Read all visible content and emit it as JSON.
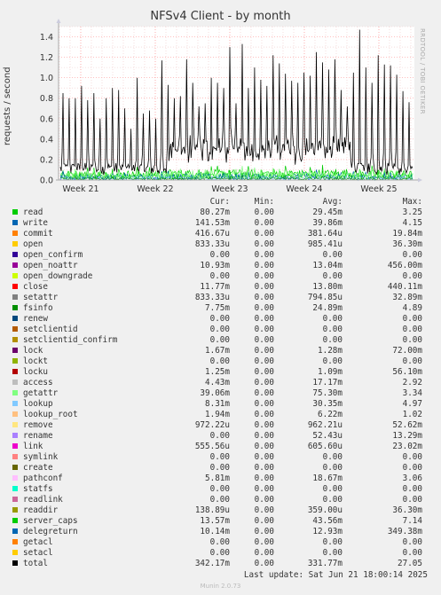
{
  "title": "NFSv4 Client - by month",
  "side_label": "RRDTOOL / TOBI OETIKER",
  "last_update": "Last update: Sat Jun 21 18:00:14 2025",
  "version": "Munin 2.0.73",
  "legend_headers": {
    "cur": "Cur:",
    "min": "Min:",
    "avg": "Avg:",
    "max": "Max:"
  },
  "chart_data": {
    "type": "line",
    "title": "NFSv4 Client - by month",
    "ylabel": "requests / second",
    "ylim": [
      0,
      1.5
    ],
    "yticks": [
      "0.0",
      "0.2",
      "0.4",
      "0.6",
      "0.8",
      "1.0",
      "1.2",
      "1.4"
    ],
    "xticks": [
      "Week 21",
      "Week 22",
      "Week 23",
      "Week 24",
      "Week 25"
    ],
    "grid": true,
    "series": [
      {
        "name": "read",
        "color": "#00cc00",
        "cur": "80.27m",
        "min": "0.00",
        "avg": "29.45m",
        "max": "3.25"
      },
      {
        "name": "write",
        "color": "#0066b3",
        "cur": "141.53m",
        "min": "0.00",
        "avg": "39.86m",
        "max": "4.15"
      },
      {
        "name": "commit",
        "color": "#ff8000",
        "cur": "416.67u",
        "min": "0.00",
        "avg": "381.64u",
        "max": "19.84m"
      },
      {
        "name": "open",
        "color": "#ffcc00",
        "cur": "833.33u",
        "min": "0.00",
        "avg": "985.41u",
        "max": "36.30m"
      },
      {
        "name": "open_confirm",
        "color": "#330099",
        "cur": "0.00",
        "min": "0.00",
        "avg": "0.00",
        "max": "0.00"
      },
      {
        "name": "open_noattr",
        "color": "#990099",
        "cur": "10.93m",
        "min": "0.00",
        "avg": "13.04m",
        "max": "456.00m"
      },
      {
        "name": "open_downgrade",
        "color": "#ccff00",
        "cur": "0.00",
        "min": "0.00",
        "avg": "0.00",
        "max": "0.00"
      },
      {
        "name": "close",
        "color": "#ff0000",
        "cur": "11.77m",
        "min": "0.00",
        "avg": "13.80m",
        "max": "440.11m"
      },
      {
        "name": "setattr",
        "color": "#808080",
        "cur": "833.33u",
        "min": "0.00",
        "avg": "794.85u",
        "max": "32.89m"
      },
      {
        "name": "fsinfo",
        "color": "#008f00",
        "cur": "7.75m",
        "min": "0.00",
        "avg": "24.89m",
        "max": "4.89"
      },
      {
        "name": "renew",
        "color": "#00487d",
        "cur": "0.00",
        "min": "0.00",
        "avg": "0.00",
        "max": "0.00"
      },
      {
        "name": "setclientid",
        "color": "#b35a00",
        "cur": "0.00",
        "min": "0.00",
        "avg": "0.00",
        "max": "0.00"
      },
      {
        "name": "setclientid_confirm",
        "color": "#b38f00",
        "cur": "0.00",
        "min": "0.00",
        "avg": "0.00",
        "max": "0.00"
      },
      {
        "name": "lock",
        "color": "#6b006b",
        "cur": "1.67m",
        "min": "0.00",
        "avg": "1.28m",
        "max": "72.00m"
      },
      {
        "name": "lockt",
        "color": "#8fb300",
        "cur": "0.00",
        "min": "0.00",
        "avg": "0.00",
        "max": "0.00"
      },
      {
        "name": "locku",
        "color": "#b30000",
        "cur": "1.25m",
        "min": "0.00",
        "avg": "1.09m",
        "max": "56.10m"
      },
      {
        "name": "access",
        "color": "#bebebe",
        "cur": "4.43m",
        "min": "0.00",
        "avg": "17.17m",
        "max": "2.92"
      },
      {
        "name": "getattr",
        "color": "#80ff80",
        "cur": "39.06m",
        "min": "0.00",
        "avg": "75.30m",
        "max": "3.34"
      },
      {
        "name": "lookup",
        "color": "#80c9ff",
        "cur": "8.31m",
        "min": "0.00",
        "avg": "30.35m",
        "max": "4.97"
      },
      {
        "name": "lookup_root",
        "color": "#ffc080",
        "cur": "1.94m",
        "min": "0.00",
        "avg": "6.22m",
        "max": "1.02"
      },
      {
        "name": "remove",
        "color": "#ffe680",
        "cur": "972.22u",
        "min": "0.00",
        "avg": "962.21u",
        "max": "52.62m"
      },
      {
        "name": "rename",
        "color": "#aa80ff",
        "cur": "0.00",
        "min": "0.00",
        "avg": "52.43u",
        "max": "13.29m"
      },
      {
        "name": "link",
        "color": "#ee00cc",
        "cur": "555.56u",
        "min": "0.00",
        "avg": "605.60u",
        "max": "23.02m"
      },
      {
        "name": "symlink",
        "color": "#ff8080",
        "cur": "0.00",
        "min": "0.00",
        "avg": "0.00",
        "max": "0.00"
      },
      {
        "name": "create",
        "color": "#666600",
        "cur": "0.00",
        "min": "0.00",
        "avg": "0.00",
        "max": "0.00"
      },
      {
        "name": "pathconf",
        "color": "#ffbfff",
        "cur": "5.81m",
        "min": "0.00",
        "avg": "18.67m",
        "max": "3.06"
      },
      {
        "name": "statfs",
        "color": "#00ffcc",
        "cur": "0.00",
        "min": "0.00",
        "avg": "0.00",
        "max": "0.00"
      },
      {
        "name": "readlink",
        "color": "#cc6699",
        "cur": "0.00",
        "min": "0.00",
        "avg": "0.00",
        "max": "0.00"
      },
      {
        "name": "readdir",
        "color": "#999900",
        "cur": "138.89u",
        "min": "0.00",
        "avg": "359.00u",
        "max": "36.30m"
      },
      {
        "name": "server_caps",
        "color": "#00cc00",
        "cur": "13.57m",
        "min": "0.00",
        "avg": "43.56m",
        "max": "7.14"
      },
      {
        "name": "delegreturn",
        "color": "#0066b3",
        "cur": "10.14m",
        "min": "0.00",
        "avg": "12.93m",
        "max": "349.38m"
      },
      {
        "name": "getacl",
        "color": "#ff8000",
        "cur": "0.00",
        "min": "0.00",
        "avg": "0.00",
        "max": "0.00"
      },
      {
        "name": "setacl",
        "color": "#ffcc00",
        "cur": "0.00",
        "min": "0.00",
        "avg": "0.00",
        "max": "0.00"
      },
      {
        "name": "total",
        "color": "#000000",
        "cur": "342.17m",
        "min": "0.00",
        "avg": "331.77m",
        "max": "27.05"
      }
    ]
  }
}
